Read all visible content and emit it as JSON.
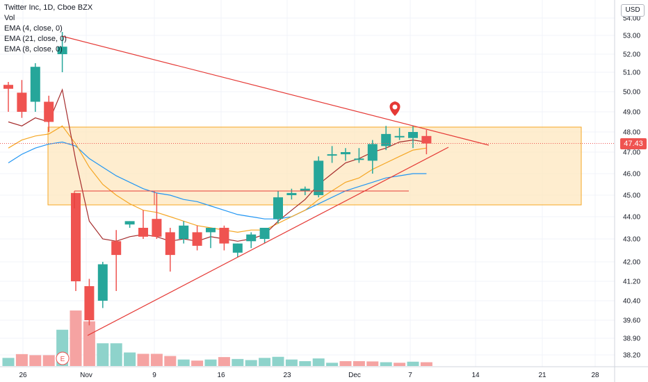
{
  "legend": {
    "symbol": "Twitter Inc, 1D, Cboe BZX",
    "vol": "Vol",
    "ema4": "EMA (4, close, 0)",
    "ema21": "EMA (21, close, 0)",
    "ema8": "EMA (8, close, 0)"
  },
  "currency": "USD",
  "last_price_label": "47.43",
  "earnings_marker": "E",
  "colors": {
    "up": "#26a69a",
    "down": "#ef5350",
    "vol_up": "#8ed3cb",
    "vol_down": "#f5a3a2",
    "trendline": "#e53935",
    "ema4": "#a52b2b",
    "ema8": "#f5a623",
    "ema21": "#2196f3",
    "zone_fill": "#fde7bf",
    "zone_border": "#f5a623"
  },
  "chart_data": {
    "type": "candlestick",
    "y_ticks": [
      "54.00",
      "53.00",
      "52.00",
      "51.00",
      "50.00",
      "49.00",
      "48.00",
      "47.00",
      "46.00",
      "45.00",
      "44.00",
      "43.00",
      "42.00",
      "41.20",
      "40.40",
      "39.60",
      "38.90",
      "38.20"
    ],
    "x_ticks": [
      "26",
      "Nov",
      "9",
      "16",
      "23",
      "Dec",
      "7",
      "14",
      "21",
      "28"
    ],
    "candles": [
      {
        "o": 50.35,
        "h": 50.5,
        "l": 49.0,
        "c": 50.15
      },
      {
        "o": 49.95,
        "h": 50.6,
        "l": 48.7,
        "c": 49.0
      },
      {
        "o": 49.5,
        "h": 51.5,
        "l": 49.0,
        "c": 51.3
      },
      {
        "o": 49.5,
        "h": 49.8,
        "l": 48.0,
        "c": 48.5
      },
      {
        "o": 52.0,
        "h": 53.2,
        "l": 51.0,
        "c": 52.4
      },
      {
        "o": 45.1,
        "h": 45.1,
        "l": 40.8,
        "c": 41.2
      },
      {
        "o": 41.0,
        "h": 41.3,
        "l": 39.4,
        "c": 39.6
      },
      {
        "o": 40.4,
        "h": 42.0,
        "l": 40.1,
        "c": 41.9
      },
      {
        "o": 42.9,
        "h": 43.4,
        "l": 40.8,
        "c": 42.3
      },
      {
        "o": 43.65,
        "h": 43.8,
        "l": 43.5,
        "c": 43.8
      },
      {
        "o": 43.5,
        "h": 44.3,
        "l": 43.0,
        "c": 43.1
      },
      {
        "o": 43.9,
        "h": 45.1,
        "l": 43.0,
        "c": 43.1
      },
      {
        "o": 43.3,
        "h": 43.5,
        "l": 41.6,
        "c": 42.3
      },
      {
        "o": 43.0,
        "h": 43.8,
        "l": 42.8,
        "c": 43.6
      },
      {
        "o": 43.3,
        "h": 43.6,
        "l": 42.5,
        "c": 42.7
      },
      {
        "o": 43.3,
        "h": 43.5,
        "l": 42.6,
        "c": 43.5
      },
      {
        "o": 43.5,
        "h": 43.6,
        "l": 42.5,
        "c": 42.8
      },
      {
        "o": 42.4,
        "h": 42.8,
        "l": 42.2,
        "c": 42.8
      },
      {
        "o": 42.9,
        "h": 43.3,
        "l": 42.6,
        "c": 43.2
      },
      {
        "o": 43.0,
        "h": 43.5,
        "l": 42.8,
        "c": 43.5
      },
      {
        "o": 43.9,
        "h": 45.2,
        "l": 43.7,
        "c": 44.9
      },
      {
        "o": 45.0,
        "h": 45.3,
        "l": 44.8,
        "c": 45.1
      },
      {
        "o": 45.2,
        "h": 45.4,
        "l": 45.0,
        "c": 45.3
      },
      {
        "o": 45.0,
        "h": 46.8,
        "l": 44.9,
        "c": 46.6
      },
      {
        "o": 46.9,
        "h": 47.3,
        "l": 46.5,
        "c": 46.9
      },
      {
        "o": 46.9,
        "h": 47.2,
        "l": 46.6,
        "c": 47.0
      },
      {
        "o": 46.7,
        "h": 47.2,
        "l": 46.5,
        "c": 46.7
      },
      {
        "o": 46.6,
        "h": 47.6,
        "l": 46.0,
        "c": 47.4
      },
      {
        "o": 47.3,
        "h": 48.3,
        "l": 47.1,
        "c": 47.9
      },
      {
        "o": 47.8,
        "h": 48.2,
        "l": 47.6,
        "c": 47.8
      },
      {
        "o": 47.7,
        "h": 48.3,
        "l": 47.2,
        "c": 48.0
      },
      {
        "o": 47.8,
        "h": 48.1,
        "l": 46.9,
        "c": 47.43
      }
    ],
    "volume": [
      {
        "v": 30,
        "up": true
      },
      {
        "v": 44,
        "up": false
      },
      {
        "v": 40,
        "up": false
      },
      {
        "v": 40,
        "up": false
      },
      {
        "v": 134,
        "up": true
      },
      {
        "v": 205,
        "up": false
      },
      {
        "v": 165,
        "up": false
      },
      {
        "v": 84,
        "up": true
      },
      {
        "v": 84,
        "up": true
      },
      {
        "v": 50,
        "up": true
      },
      {
        "v": 45,
        "up": false
      },
      {
        "v": 45,
        "up": false
      },
      {
        "v": 37,
        "up": false
      },
      {
        "v": 24,
        "up": true
      },
      {
        "v": 20,
        "up": false
      },
      {
        "v": 24,
        "up": true
      },
      {
        "v": 33,
        "up": false
      },
      {
        "v": 26,
        "up": true
      },
      {
        "v": 22,
        "up": true
      },
      {
        "v": 30,
        "up": true
      },
      {
        "v": 34,
        "up": true
      },
      {
        "v": 24,
        "up": true
      },
      {
        "v": 18,
        "up": true
      },
      {
        "v": 28,
        "up": true
      },
      {
        "v": 12,
        "up": true
      },
      {
        "v": 18,
        "up": false
      },
      {
        "v": 18,
        "up": false
      },
      {
        "v": 17,
        "up": false
      },
      {
        "v": 14,
        "up": true
      },
      {
        "v": 12,
        "up": false
      },
      {
        "v": 16,
        "up": true
      },
      {
        "v": 14,
        "up": false
      }
    ],
    "ema4": [
      48.5,
      48.3,
      48.7,
      48.5,
      50.1,
      46.6,
      43.8,
      43.0,
      42.9,
      43.1,
      43.2,
      43.1,
      42.9,
      43.0,
      42.9,
      43.1,
      43.0,
      42.9,
      43.0,
      43.2,
      43.8,
      44.3,
      44.8,
      45.5,
      46.0,
      46.5,
      46.7,
      47.0,
      47.2,
      47.5,
      47.6,
      47.5
    ],
    "ema8": [
      47.2,
      47.6,
      47.8,
      47.9,
      48.3,
      47.4,
      46.3,
      45.5,
      45.0,
      44.6,
      44.3,
      44.2,
      44.0,
      43.8,
      43.6,
      43.5,
      43.4,
      43.3,
      43.4,
      43.4,
      43.7,
      44.0,
      44.3,
      44.8,
      45.2,
      45.6,
      45.8,
      46.2,
      46.5,
      46.8,
      47.1,
      47.2
    ],
    "ema21": [
      46.5,
      46.9,
      47.2,
      47.4,
      47.5,
      47.3,
      46.7,
      46.3,
      45.9,
      45.6,
      45.3,
      45.1,
      45.0,
      44.8,
      44.7,
      44.5,
      44.3,
      44.1,
      44.0,
      43.9,
      43.9,
      44.0,
      44.3,
      44.6,
      44.9,
      45.2,
      45.4,
      45.6,
      45.8,
      45.9,
      46.0,
      46.0
    ],
    "last_price": 47.43
  }
}
